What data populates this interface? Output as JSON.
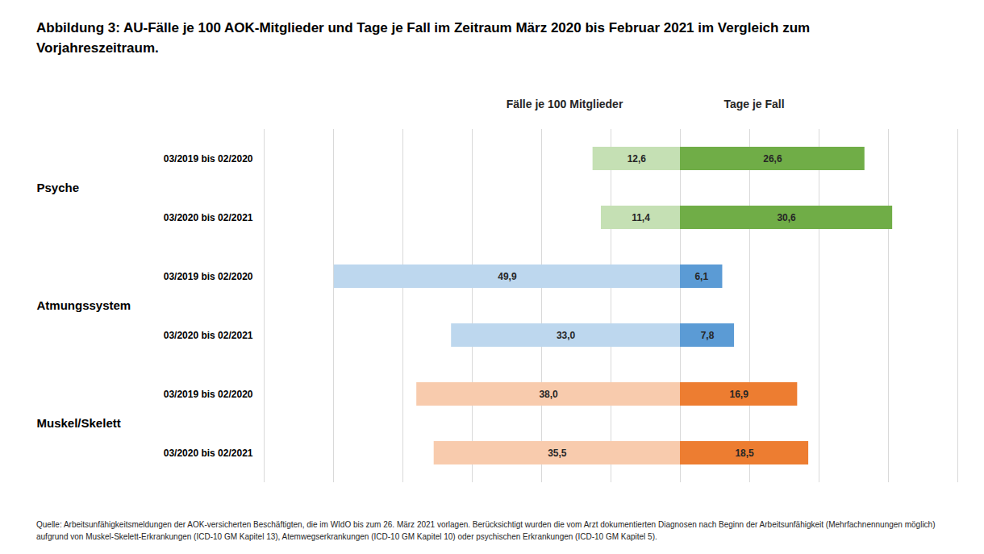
{
  "chart_data": {
    "type": "bar",
    "title": "Abbildung 3: AU-Fälle je 100 AOK-Mitglieder  und Tage je Fall im Zeitraum März 2020 bis Februar 2021 im Vergleich zum Vorjahreszeitraum.",
    "caption": "Quelle: Arbeitsunfähigkeitsmeldungen der AOK-versicherten Beschäftigten, die im WIdO bis zum 26. März 2021 vorlagen. Berücksichtigt wurden die vom Arzt dokumentierten  Diagnosen nach Beginn der Arbeitsunfähigkeit (Mehrfachnennungen möglich) aufgrund von Muskel-Skelett-Erkrankungen (ICD-10 GM Kapitel 13), Atemwegserkrankungen  (ICD-10 GM Kapitel 10) oder psychischen Erkrankungen (ICD-10 GM Kapitel 5).",
    "orientation": "horizontal",
    "groups": [
      "Psyche",
      "Atmungssystem",
      "Muskel/Skelett"
    ],
    "categories": [
      "03/2019 bis 02/2020",
      "03/2020 bis 02/2021",
      "03/2019 bis 02/2020",
      "03/2020 bis 02/2021",
      "03/2019 bis 02/2020",
      "03/2020 bis 02/2021"
    ],
    "series": [
      {
        "name": "Fälle je 100 Mitglieder",
        "values": [
          12.6,
          11.4,
          49.9,
          33.0,
          38.0,
          35.5
        ],
        "value_labels": [
          "12,6",
          "11,4",
          "49,9",
          "33,0",
          "38,0",
          "35,5"
        ],
        "colors": [
          "#c5e0b4",
          "#c5e0b4",
          "#bdd7ee",
          "#bdd7ee",
          "#f8cbad",
          "#f8cbad"
        ]
      },
      {
        "name": "Tage je Fall",
        "axis": "x2",
        "values": [
          26.6,
          30.6,
          6.1,
          7.8,
          16.9,
          18.5
        ],
        "value_labels": [
          "26,6",
          "30,6",
          "6,1",
          "7,8",
          "16,9",
          "18,5"
        ],
        "colors": [
          "#70ad47",
          "#70ad47",
          "#5b9bd5",
          "#5b9bd5",
          "#ed7d31",
          "#ed7d31"
        ]
      }
    ],
    "xlim": [
      0,
      60
    ],
    "xticks": [
      0,
      10,
      20,
      30,
      40,
      50,
      60
    ],
    "x2lim": [
      0,
      40
    ],
    "x2ticks": [
      0,
      10,
      20,
      30,
      40
    ],
    "grid": true,
    "data_labels": true,
    "tick_labels": "y"
  }
}
